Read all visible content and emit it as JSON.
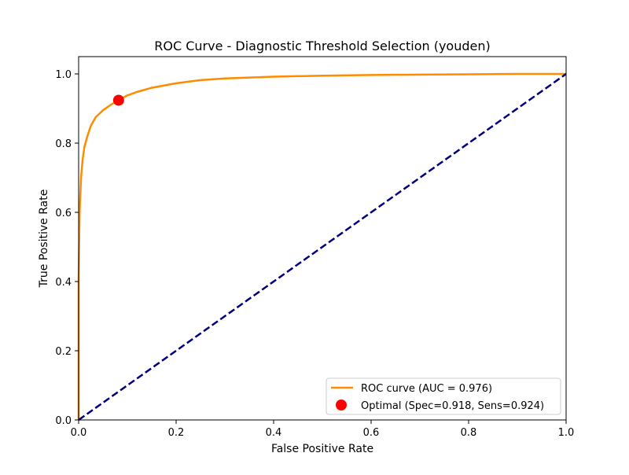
{
  "chart_data": {
    "type": "line",
    "title": "ROC Curve - Diagnostic Threshold Selection (youden)",
    "xlabel": "False Positive Rate",
    "ylabel": "True Positive Rate",
    "xlim": [
      0.0,
      1.0
    ],
    "ylim": [
      0.0,
      1.05
    ],
    "xticks": [
      "0.0",
      "0.2",
      "0.4",
      "0.6",
      "0.8",
      "1.0"
    ],
    "yticks": [
      "0.0",
      "0.2",
      "0.4",
      "0.6",
      "0.8",
      "1.0"
    ],
    "grid": false,
    "legend_position": "lower-right",
    "series": [
      {
        "name": "ROC curve (AUC = 0.976)",
        "kind": "line",
        "color": "#ff8c00",
        "x": [
          0.0,
          0.0,
          0.002,
          0.005,
          0.008,
          0.012,
          0.018,
          0.025,
          0.035,
          0.05,
          0.065,
          0.082,
          0.1,
          0.12,
          0.15,
          0.2,
          0.25,
          0.3,
          0.4,
          0.5,
          0.6,
          0.7,
          0.8,
          0.9,
          1.0
        ],
        "y": [
          0.0,
          0.4,
          0.6,
          0.7,
          0.75,
          0.79,
          0.82,
          0.85,
          0.875,
          0.895,
          0.91,
          0.924,
          0.938,
          0.948,
          0.96,
          0.973,
          0.982,
          0.987,
          0.992,
          0.995,
          0.997,
          0.998,
          0.999,
          1.0,
          1.0
        ]
      },
      {
        "name": "",
        "kind": "diagonal",
        "color": "#000080",
        "x": [
          0.0,
          1.0
        ],
        "y": [
          0.0,
          1.0
        ]
      }
    ],
    "optimal_point": {
      "label": "Optimal (Spec=0.918, Sens=0.924)",
      "x": 0.082,
      "y": 0.924,
      "color": "#ff0000"
    }
  }
}
